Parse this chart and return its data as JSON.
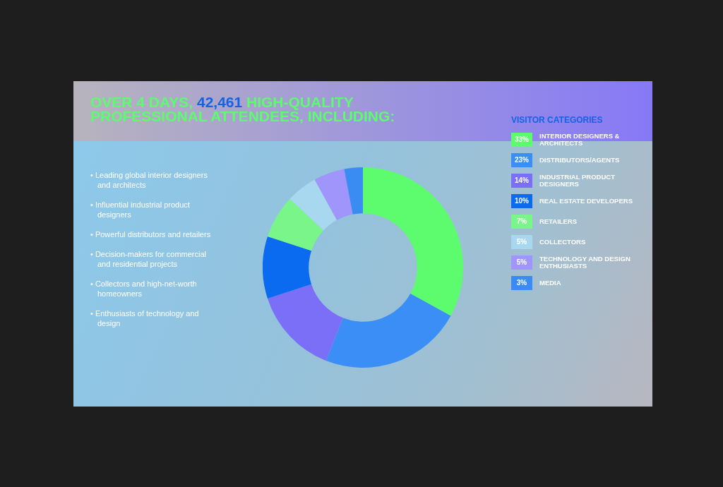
{
  "chart_data": {
    "type": "donut",
    "title": "OVER 4 DAYS, 42,461 HIGH-QUALITY PROFESSIONAL ATTENDEES, INCLUDING:",
    "legend_title": "VISITOR CATEGORIES",
    "legend": "right",
    "categories": [
      "INTERIOR DESIGNERS & ARCHITECTS",
      "DISTRIBUTORS/AGENTS",
      "INDUSTRIAL PRODUCT DESIGNERS",
      "REAL ESTATE DEVELOPERS",
      "RETAILERS",
      "COLLECTORS",
      "TECHNOLOGY AND DESIGN ENTHUSIASTS",
      "MEDIA"
    ],
    "values": [
      33,
      23,
      14,
      10,
      7,
      5,
      5,
      3
    ],
    "value_labels": [
      "33%",
      "23%",
      "14%",
      "10%",
      "7%",
      "5%",
      "5%",
      "3%"
    ],
    "colors": [
      "#5dfc6e",
      "#3a8ef5",
      "#7b6ff7",
      "#0a6af0",
      "#7af58a",
      "#a8d8f0",
      "#9f95fb",
      "#3b8cf2"
    ],
    "annotations": [
      "• Leading global interior designers and architects",
      "• Influential industrial product designers",
      "• Powerful distributors and retailers",
      "• Decision-makers for commercial and residential projects",
      "• Collectors and high-net-worth homeowners",
      "• Enthusiasts of technology and design"
    ]
  }
}
